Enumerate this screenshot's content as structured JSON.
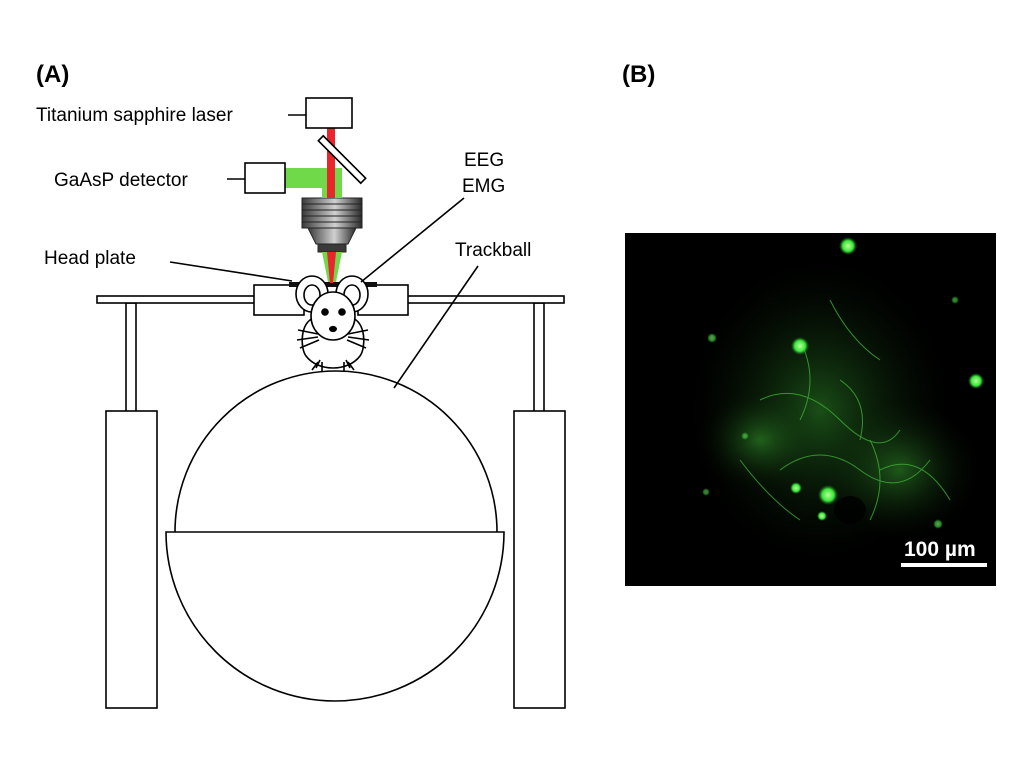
{
  "panel_a": {
    "label": "(A)",
    "laser_label": "Titanium sapphire laser",
    "detector_label": "GaAsP detector",
    "eeg_label": "EEG",
    "emg_label": "EMG",
    "head_plate_label": "Head plate",
    "trackball_label": "Trackball",
    "laser_color": "#e8262b",
    "emission_color": "#6fd94a"
  },
  "panel_b": {
    "label": "(B)",
    "scale_bar_label": "100 µm",
    "background_color": "#000000",
    "fluorescence_color": "#39e639"
  }
}
